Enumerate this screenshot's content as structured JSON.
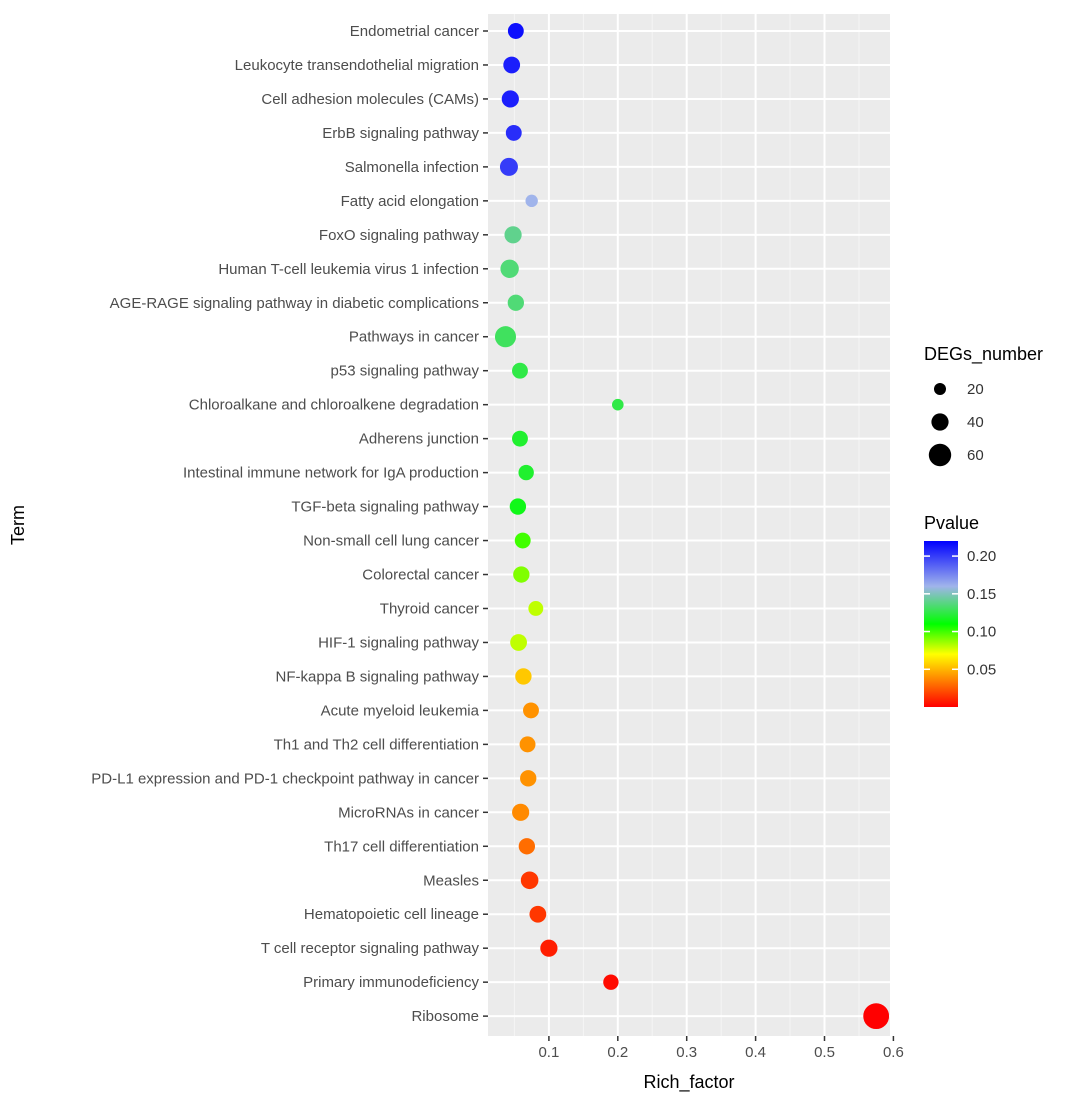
{
  "chart_data": {
    "type": "scatter",
    "xlabel": "Rich_factor",
    "ylabel": "Term",
    "xlim": [
      0.0,
      0.6
    ],
    "x_ticks": [
      "0.1",
      "0.2",
      "0.3",
      "0.4",
      "0.5",
      "0.6"
    ],
    "x_tick_values": [
      0.1,
      0.2,
      0.3,
      0.4,
      0.5,
      0.6
    ],
    "grid": true,
    "legend_placement": "right",
    "size_legend": {
      "title": "DEGs_number",
      "entries": [
        {
          "label": "20",
          "value": 20
        },
        {
          "label": "40",
          "value": 40
        },
        {
          "label": "60",
          "value": 60
        }
      ]
    },
    "color_legend": {
      "title": "Pvalue",
      "ticks": [
        "0.20",
        "0.15",
        "0.10",
        "0.05"
      ],
      "tick_values": [
        0.2,
        0.15,
        0.1,
        0.05
      ],
      "range": [
        0.0,
        0.22
      ],
      "colors": [
        "#ff0000",
        "#ffff00",
        "#00ff00",
        "#0000ff"
      ]
    },
    "points": [
      {
        "term": "Endometrial cancer",
        "rich_factor": 0.052,
        "degs_number": 10,
        "pvalue": 0.215
      },
      {
        "term": "Leukocyte transendothelial migration",
        "rich_factor": 0.046,
        "degs_number": 12,
        "pvalue": 0.21
      },
      {
        "term": "Cell adhesion molecules (CAMs)",
        "rich_factor": 0.044,
        "degs_number": 13,
        "pvalue": 0.21
      },
      {
        "term": "ErbB signaling pathway",
        "rich_factor": 0.049,
        "degs_number": 10,
        "pvalue": 0.205
      },
      {
        "term": "Salmonella infection",
        "rich_factor": 0.042,
        "degs_number": 15,
        "pvalue": 0.2
      },
      {
        "term": "Fatty acid elongation",
        "rich_factor": 0.075,
        "degs_number": 4,
        "pvalue": 0.16
      },
      {
        "term": "FoxO signaling pathway",
        "rich_factor": 0.048,
        "degs_number": 13,
        "pvalue": 0.14
      },
      {
        "term": "Human T-cell leukemia virus 1 infection",
        "rich_factor": 0.043,
        "degs_number": 16,
        "pvalue": 0.135
      },
      {
        "term": "AGE-RAGE signaling pathway in diabetic complications",
        "rich_factor": 0.052,
        "degs_number": 11,
        "pvalue": 0.135
      },
      {
        "term": "Pathways in cancer",
        "rich_factor": 0.037,
        "degs_number": 24,
        "pvalue": 0.13
      },
      {
        "term": "p53 signaling pathway",
        "rich_factor": 0.058,
        "degs_number": 10,
        "pvalue": 0.125
      },
      {
        "term": "Chloroalkane and chloroalkene degradation",
        "rich_factor": 0.2,
        "degs_number": 3,
        "pvalue": 0.125
      },
      {
        "term": "Adherens junction",
        "rich_factor": 0.058,
        "degs_number": 10,
        "pvalue": 0.12
      },
      {
        "term": "Intestinal immune network for IgA production",
        "rich_factor": 0.067,
        "degs_number": 9,
        "pvalue": 0.12
      },
      {
        "term": "TGF-beta signaling pathway",
        "rich_factor": 0.055,
        "degs_number": 11,
        "pvalue": 0.115
      },
      {
        "term": "Non-small cell lung cancer",
        "rich_factor": 0.062,
        "degs_number": 10,
        "pvalue": 0.1
      },
      {
        "term": "Colorectal cancer",
        "rich_factor": 0.06,
        "degs_number": 11,
        "pvalue": 0.09
      },
      {
        "term": "Thyroid cancer",
        "rich_factor": 0.081,
        "degs_number": 8,
        "pvalue": 0.08
      },
      {
        "term": "HIF-1 signaling pathway",
        "rich_factor": 0.056,
        "degs_number": 12,
        "pvalue": 0.08
      },
      {
        "term": "NF-kappa B signaling pathway",
        "rich_factor": 0.063,
        "degs_number": 11,
        "pvalue": 0.055
      },
      {
        "term": "Acute myeloid leukemia",
        "rich_factor": 0.074,
        "degs_number": 10,
        "pvalue": 0.04
      },
      {
        "term": "Th1 and Th2 cell differentiation",
        "rich_factor": 0.069,
        "degs_number": 10,
        "pvalue": 0.04
      },
      {
        "term": "PD-L1 expression and PD-1 checkpoint pathway in cancer",
        "rich_factor": 0.07,
        "degs_number": 11,
        "pvalue": 0.04
      },
      {
        "term": "MicroRNAs in cancer",
        "rich_factor": 0.059,
        "degs_number": 13,
        "pvalue": 0.038
      },
      {
        "term": "Th17 cell differentiation",
        "rich_factor": 0.068,
        "degs_number": 11,
        "pvalue": 0.03
      },
      {
        "term": "Measles",
        "rich_factor": 0.072,
        "degs_number": 14,
        "pvalue": 0.015
      },
      {
        "term": "Hematopoietic cell lineage",
        "rich_factor": 0.084,
        "degs_number": 12,
        "pvalue": 0.015
      },
      {
        "term": "T cell receptor signaling pathway",
        "rich_factor": 0.1,
        "degs_number": 13,
        "pvalue": 0.008
      },
      {
        "term": "Primary immunodeficiency",
        "rich_factor": 0.19,
        "degs_number": 9,
        "pvalue": 0.003
      },
      {
        "term": "Ribosome",
        "rich_factor": 0.575,
        "degs_number": 42,
        "pvalue": 0.0001
      }
    ]
  }
}
